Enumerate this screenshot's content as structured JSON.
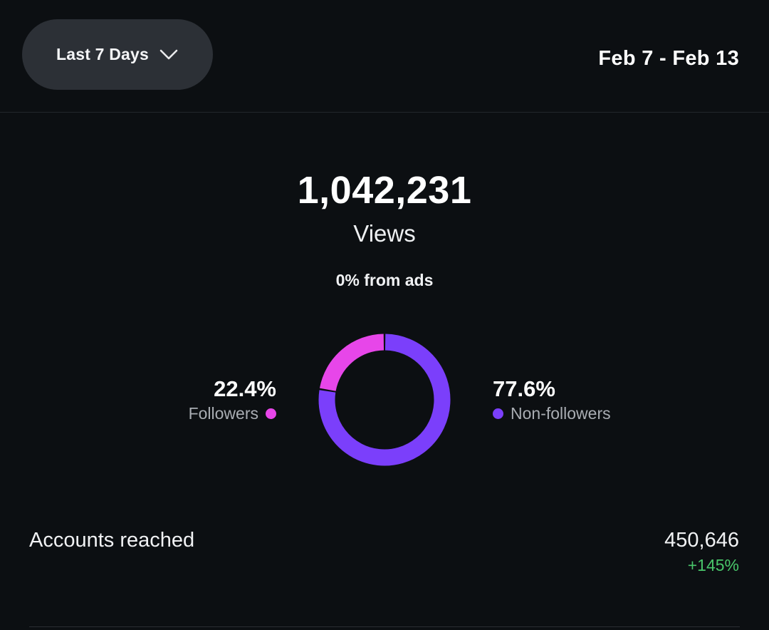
{
  "header": {
    "range_label": "Last 7 Days",
    "date_range": "Feb 7 - Feb 13"
  },
  "summary": {
    "total_views": "1,042,231",
    "views_label": "Views",
    "ads_label": "0% from ads"
  },
  "chart_data": {
    "type": "pie",
    "categories": [
      "Followers",
      "Non-followers"
    ],
    "values": [
      22.4,
      77.6
    ],
    "labels": [
      "22.4%",
      "77.6%"
    ],
    "colors": [
      "#e746e9",
      "#7b3ffb"
    ]
  },
  "metrics": {
    "accounts_reached": {
      "label": "Accounts reached",
      "value": "450,646",
      "change": "+145%"
    }
  },
  "icons": {
    "range_chevron": "chevron-down-icon"
  }
}
